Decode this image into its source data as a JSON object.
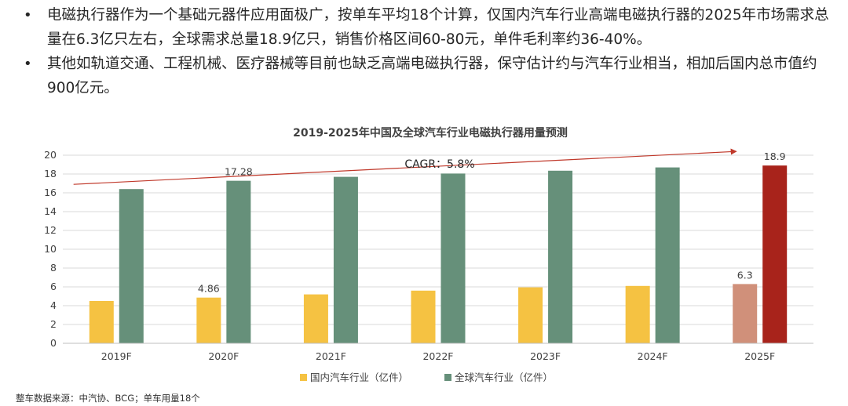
{
  "bullets": [
    "电磁执行器作为一个基础元器件应用面极广，按单车平均18个计算，仅国内汽车行业高端电磁执行器的2025年市场需求总量在6.3亿只左右，全球需求总量18.9亿只，销售价格区间60-80元，单件毛利率约36-40%。",
    "其他如轨道交通、工程机械、医疗器械等目前也缺乏高端电磁执行器，保守估计约与汽车行业相当，相加后国内总市值约900亿元。"
  ],
  "footnote": "整车数据来源：中汽协、BCG；单车用量18个",
  "chart_data": {
    "type": "bar",
    "title": "2019-2025年中国及全球汽车行业电磁执行器用量预测",
    "categories": [
      "2019F",
      "2020F",
      "2021F",
      "2022F",
      "2023F",
      "2024F",
      "2025F"
    ],
    "series": [
      {
        "name": "国内汽车行业（亿件）",
        "values": [
          4.5,
          4.86,
          5.2,
          5.6,
          5.95,
          6.1,
          6.3
        ],
        "color": "#F5C242"
      },
      {
        "name": "全球汽车行业（亿件）",
        "values": [
          16.4,
          17.28,
          17.7,
          18.05,
          18.35,
          18.7,
          18.9
        ],
        "color": "#66907A"
      }
    ],
    "highlight_colors": [
      "#D0907A",
      "#A8231B"
    ],
    "data_labels": [
      {
        "series": 1,
        "index": 1,
        "text": "17.28"
      },
      {
        "series": 0,
        "index": 1,
        "text": "4.86"
      },
      {
        "series": 0,
        "index": 6,
        "text": "6.3"
      },
      {
        "series": 1,
        "index": 6,
        "text": "18.9"
      }
    ],
    "annotation": {
      "text": "CAGR：5.8%",
      "color": "#C0392B",
      "x_from": "2019F",
      "x_to": "2025F",
      "y_from": 16.9,
      "y_to": 20.4
    },
    "yticks": [
      0,
      2,
      4,
      6,
      8,
      10,
      12,
      14,
      16,
      18,
      20
    ],
    "ylim": [
      0,
      20
    ],
    "grid": true,
    "legend": "bottom"
  }
}
